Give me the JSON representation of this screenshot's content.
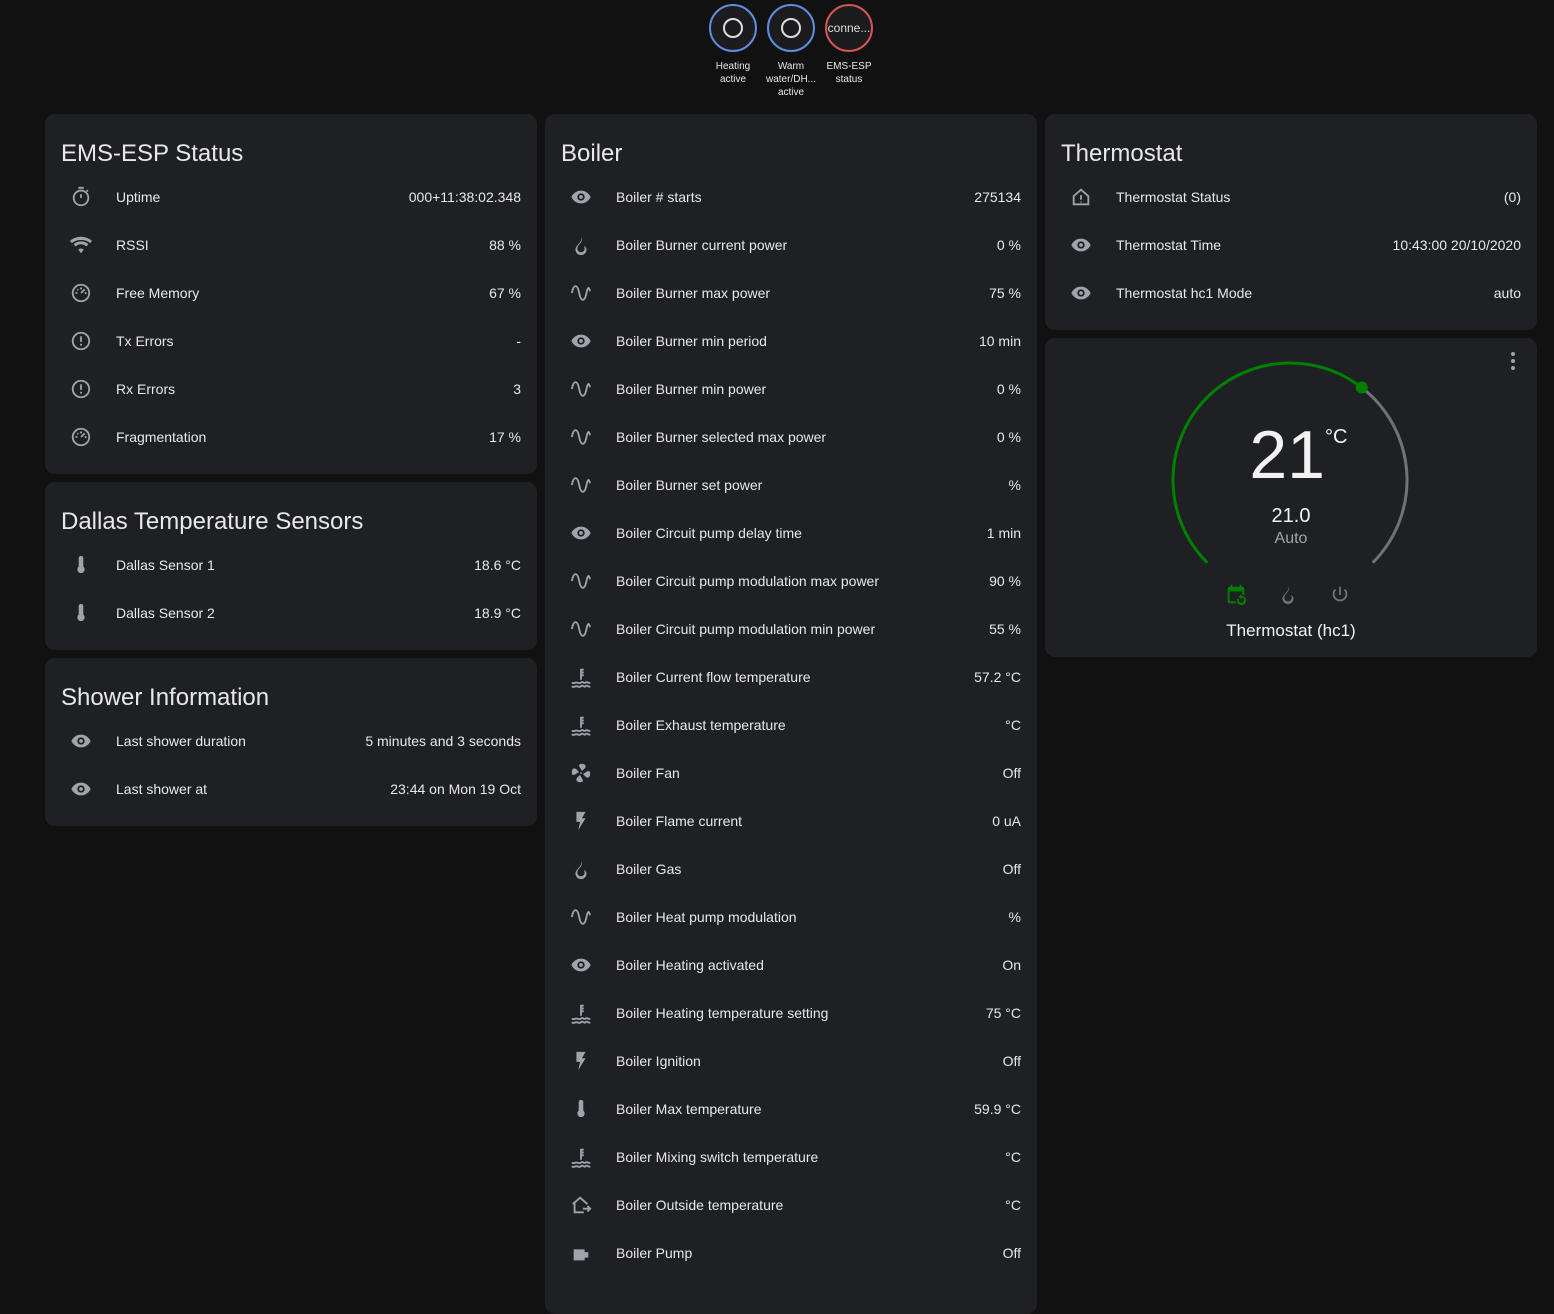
{
  "badges": [
    {
      "label": "Heating active",
      "value": "",
      "color": "#5d8de0"
    },
    {
      "label": "Warm water/DH... active",
      "value": "",
      "color": "#5d8de0"
    },
    {
      "label": "EMS-ESP status",
      "value": "conne...",
      "color": "#d65454"
    }
  ],
  "ems": {
    "title": "EMS-ESP Status",
    "rows": [
      {
        "icon": "timer",
        "name": "Uptime",
        "value": "000+11:38:02.348"
      },
      {
        "icon": "wifi",
        "name": "RSSI",
        "value": "88 %"
      },
      {
        "icon": "gauge",
        "name": "Free Memory",
        "value": "67 %"
      },
      {
        "icon": "alert",
        "name": "Tx Errors",
        "value": "-"
      },
      {
        "icon": "alert",
        "name": "Rx Errors",
        "value": "3"
      },
      {
        "icon": "gauge",
        "name": "Fragmentation",
        "value": "17 %"
      }
    ]
  },
  "dallas": {
    "title": "Dallas Temperature Sensors",
    "rows": [
      {
        "icon": "thermometer",
        "name": "Dallas Sensor 1",
        "value": "18.6 °C"
      },
      {
        "icon": "thermometer",
        "name": "Dallas Sensor 2",
        "value": "18.9 °C"
      }
    ]
  },
  "shower": {
    "title": "Shower Information",
    "rows": [
      {
        "icon": "eye",
        "name": "Last shower duration",
        "value": "5 minutes and 3 seconds"
      },
      {
        "icon": "eye",
        "name": "Last shower at",
        "value": "23:44 on Mon 19 Oct"
      }
    ]
  },
  "boiler": {
    "title": "Boiler",
    "rows": [
      {
        "icon": "eye",
        "name": "Boiler # starts",
        "value": "275134"
      },
      {
        "icon": "fire",
        "name": "Boiler Burner current power",
        "value": "0 %"
      },
      {
        "icon": "sine",
        "name": "Boiler Burner max power",
        "value": "75 %"
      },
      {
        "icon": "eye",
        "name": "Boiler Burner min period",
        "value": "10 min"
      },
      {
        "icon": "sine",
        "name": "Boiler Burner min power",
        "value": "0 %"
      },
      {
        "icon": "sine",
        "name": "Boiler Burner selected max power",
        "value": "0 %"
      },
      {
        "icon": "sine",
        "name": "Boiler Burner set power",
        "value": "%"
      },
      {
        "icon": "eye",
        "name": "Boiler Circuit pump delay time",
        "value": "1 min"
      },
      {
        "icon": "sine",
        "name": "Boiler Circuit pump modulation max power",
        "value": "90 %"
      },
      {
        "icon": "sine",
        "name": "Boiler Circuit pump modulation min power",
        "value": "55 %"
      },
      {
        "icon": "water-temp",
        "name": "Boiler Current flow temperature",
        "value": "57.2 °C"
      },
      {
        "icon": "water-temp",
        "name": "Boiler Exhaust temperature",
        "value": "°C"
      },
      {
        "icon": "fan",
        "name": "Boiler Fan",
        "value": "Off"
      },
      {
        "icon": "flash",
        "name": "Boiler Flame current",
        "value": "0 uA"
      },
      {
        "icon": "fire",
        "name": "Boiler Gas",
        "value": "Off"
      },
      {
        "icon": "sine",
        "name": "Boiler Heat pump modulation",
        "value": "%"
      },
      {
        "icon": "eye",
        "name": "Boiler Heating activated",
        "value": "On"
      },
      {
        "icon": "water-temp",
        "name": "Boiler Heating temperature setting",
        "value": "75 °C"
      },
      {
        "icon": "flash",
        "name": "Boiler Ignition",
        "value": "Off"
      },
      {
        "icon": "thermometer",
        "name": "Boiler Max temperature",
        "value": "59.9 °C"
      },
      {
        "icon": "water-temp",
        "name": "Boiler Mixing switch temperature",
        "value": "°C"
      },
      {
        "icon": "home-export",
        "name": "Boiler Outside temperature",
        "value": "°C"
      },
      {
        "icon": "pump",
        "name": "Boiler Pump",
        "value": "Off"
      }
    ]
  },
  "thermostat": {
    "title": "Thermostat",
    "rows": [
      {
        "icon": "home-alert",
        "name": "Thermostat Status",
        "value": "(0)"
      },
      {
        "icon": "eye",
        "name": "Thermostat Time",
        "value": "10:43:00 20/10/2020"
      },
      {
        "icon": "eye",
        "name": "Thermostat hc1 Mode",
        "value": "auto"
      }
    ]
  },
  "climate": {
    "target": "21",
    "unit": "°C",
    "current": "21.0",
    "mode": "Auto",
    "name": "Thermostat (hc1)",
    "target_value": 21,
    "min": 5,
    "max": 30,
    "active_color": "#008000",
    "modes": [
      "auto",
      "heat",
      "off"
    ]
  }
}
